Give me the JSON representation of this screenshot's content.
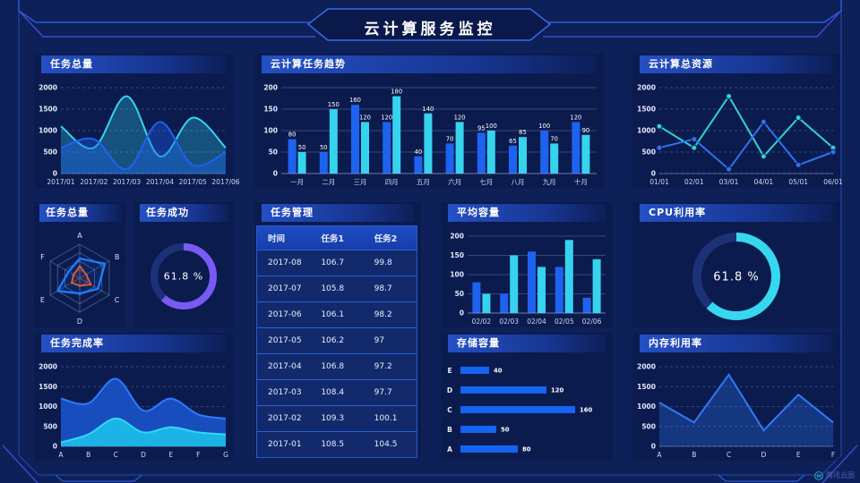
{
  "title": "云计算服务监控",
  "watermark": "腾讯云图",
  "colors": {
    "background": "#0d2057",
    "accent_blue": "#1e62f0",
    "accent_cyan": "#35d3ee",
    "accent_teal": "#2ed5c9",
    "accent_purple": "#7a5af5",
    "accent_orange": "#ff5a2a",
    "frame_blue": "#2b5cd8",
    "frame_purple": "#4a3fd0"
  },
  "panels": {
    "tasks_total": {
      "title": "任务总量"
    },
    "task_trend": {
      "title": "云计算任务趋势"
    },
    "total_resources": {
      "title": "云计算总资源"
    },
    "tasks_total_radar": {
      "title": "任务总量"
    },
    "task_success": {
      "title": "任务成功"
    },
    "task_table": {
      "title": "任务管理",
      "columns": [
        "时间",
        "任务1",
        "任务2"
      ],
      "rows": [
        [
          "2017-08",
          "106.7",
          "99.8"
        ],
        [
          "2017-07",
          "105.8",
          "98.7"
        ],
        [
          "2017-06",
          "106.1",
          "98.2"
        ],
        [
          "2017-05",
          "106.2",
          "97"
        ],
        [
          "2017-04",
          "106.8",
          "97.2"
        ],
        [
          "2017-03",
          "108.4",
          "97.7"
        ],
        [
          "2017-02",
          "109.3",
          "100.1"
        ],
        [
          "2017-01",
          "108.5",
          "104.5"
        ]
      ]
    },
    "avg_capacity": {
      "title": "平均容量"
    },
    "cpu_usage": {
      "title": "CPU利用率"
    },
    "task_completion": {
      "title": "任务完成率"
    },
    "storage": {
      "title": "存储容量"
    },
    "memory": {
      "title": "内存利用率"
    }
  },
  "chart_data": [
    {
      "id": "chart-tasks-total",
      "type": "area",
      "title": "任务总量",
      "smooth": true,
      "grid": "dashed",
      "x": [
        "2017/01",
        "2017/02",
        "2017/03",
        "2017/04",
        "2017/05",
        "2017/06"
      ],
      "ylim": [
        0,
        2000
      ],
      "yticks": [
        0,
        500,
        1000,
        1500,
        2000
      ],
      "series": [
        {
          "name": "series-cyan",
          "color": "#35d3ee",
          "fill_opacity": 0.3,
          "values": [
            1100,
            600,
            1800,
            400,
            1300,
            600
          ]
        },
        {
          "name": "series-blue",
          "color": "#1e62f0",
          "fill_opacity": 0.38,
          "values": [
            600,
            800,
            100,
            1200,
            200,
            500
          ]
        }
      ]
    },
    {
      "id": "chart-task-trend",
      "type": "bar",
      "title": "云计算任务趋势",
      "grid": "solid",
      "value_labels": true,
      "categories": [
        "一月",
        "二月",
        "三月",
        "四月",
        "五月",
        "六月",
        "七月",
        "八月",
        "九月",
        "十月"
      ],
      "ylim": [
        0,
        200
      ],
      "yticks": [
        0,
        50,
        100,
        150,
        200
      ],
      "series": [
        {
          "name": "任务1",
          "color": "#1e62f0",
          "values": [
            80,
            50,
            160,
            120,
            40,
            70,
            95,
            65,
            100,
            120
          ]
        },
        {
          "name": "任务2",
          "color": "#35d3ee",
          "values": [
            50,
            150,
            120,
            180,
            140,
            120,
            100,
            85,
            70,
            90
          ]
        }
      ]
    },
    {
      "id": "chart-total-resources",
      "type": "line",
      "title": "云计算总资源",
      "markers": true,
      "grid": "dashed",
      "x": [
        "01/01",
        "02/01",
        "03/01",
        "04/01",
        "05/01",
        "06/01"
      ],
      "ylim": [
        0,
        2000
      ],
      "yticks": [
        0,
        500,
        1000,
        1500,
        2000
      ],
      "series": [
        {
          "name": "series-teal",
          "color": "#2ed5c9",
          "values": [
            1100,
            600,
            1800,
            400,
            1300,
            600
          ]
        },
        {
          "name": "series-blue",
          "color": "#2f72f0",
          "values": [
            600,
            800,
            100,
            1200,
            200,
            500
          ]
        }
      ]
    },
    {
      "id": "chart-radar",
      "type": "radar",
      "title": "任务总量",
      "axes": [
        "A",
        "B",
        "C",
        "D",
        "E",
        "F"
      ],
      "max": 100,
      "series": [
        {
          "name": "blue",
          "color": "#1e7bff",
          "values": [
            58,
            85,
            62,
            45,
            75,
            38
          ]
        },
        {
          "name": "orange",
          "color": "#ff5a2a",
          "values": [
            36,
            22,
            38,
            22,
            28,
            20
          ]
        }
      ]
    },
    {
      "id": "chart-task-success",
      "type": "donut",
      "title": "任务成功",
      "value": 61.8,
      "label": "61.8 %",
      "color": "#7a5af5",
      "track": "#1c3178",
      "radius": 33,
      "stroke": 8,
      "font": 11
    },
    {
      "id": "chart-avg-capacity",
      "type": "bar",
      "title": "平均容量",
      "grid": "solid",
      "value_labels": false,
      "categories": [
        "02/02",
        "02/03",
        "02/04",
        "02/05",
        "02/06"
      ],
      "ylim": [
        0,
        200
      ],
      "yticks": [
        0,
        50,
        100,
        150,
        200
      ],
      "series": [
        {
          "name": "series-blue",
          "color": "#1e62f0",
          "values": [
            80,
            50,
            160,
            120,
            40
          ]
        },
        {
          "name": "series-cyan",
          "color": "#35d3ee",
          "values": [
            50,
            150,
            120,
            190,
            140
          ]
        }
      ]
    },
    {
      "id": "chart-cpu",
      "type": "donut",
      "title": "CPU利用率",
      "value": 61.8,
      "label": "61.8 %",
      "color": "#35d8ee",
      "track": "#1c3178",
      "radius": 44,
      "stroke": 10,
      "font": 13
    },
    {
      "id": "chart-completion",
      "type": "area",
      "title": "任务完成率",
      "smooth": true,
      "grid": "dashed",
      "x": [
        "A",
        "B",
        "C",
        "D",
        "E",
        "F",
        "G"
      ],
      "ylim": [
        0,
        2000
      ],
      "yticks": [
        0,
        500,
        1000,
        1500,
        2000
      ],
      "series": [
        {
          "name": "series-blue",
          "color": "#2e7bff",
          "fill_color": "#1a51c8",
          "fill_opacity": 0.92,
          "values": [
            1200,
            1080,
            1700,
            900,
            1200,
            800,
            700
          ]
        },
        {
          "name": "series-cyan",
          "color": "#30d8f8",
          "fill_color": "#1cb8e8",
          "fill_opacity": 0.95,
          "values": [
            100,
            300,
            700,
            350,
            480,
            350,
            300
          ]
        }
      ]
    },
    {
      "id": "chart-storage",
      "type": "hbar",
      "title": "存储容量",
      "categories": [
        "E",
        "D",
        "C",
        "B",
        "A"
      ],
      "values": [
        40,
        120,
        160,
        50,
        80
      ],
      "color": "#1464f0",
      "xmax": 160
    },
    {
      "id": "chart-memory",
      "type": "line",
      "title": "内存利用率",
      "markers": false,
      "grid": "dashed",
      "smooth": false,
      "x": [
        "A",
        "B",
        "C",
        "D",
        "E",
        "F"
      ],
      "ylim": [
        0,
        2000
      ],
      "yticks": [
        0,
        500,
        1000,
        1500,
        2000
      ],
      "series": [
        {
          "name": "series-blue",
          "color": "#2e7af5",
          "fill_opacity": 0.3,
          "values": [
            1100,
            600,
            1800,
            400,
            1300,
            600
          ]
        }
      ]
    }
  ]
}
